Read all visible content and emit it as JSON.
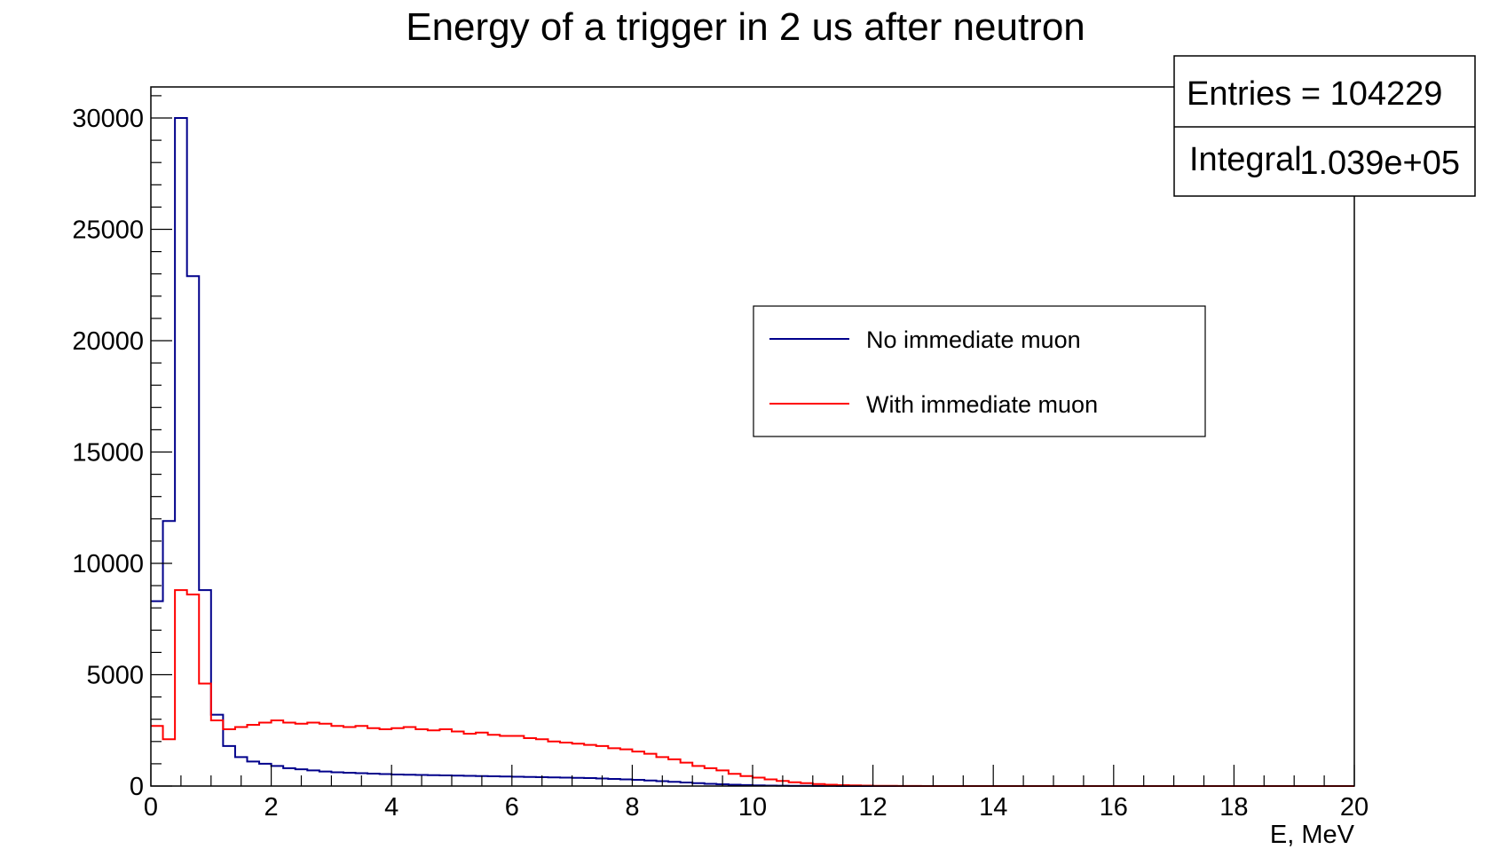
{
  "chart_data": {
    "type": "histogram",
    "title": "Energy of a trigger in 2 us after neutron",
    "xlabel": "E, MeV",
    "ylabel": "",
    "xlim": [
      0,
      20
    ],
    "ylim": [
      0,
      30000
    ],
    "x_ticks": [
      "0",
      "2",
      "4",
      "6",
      "8",
      "10",
      "12",
      "14",
      "16",
      "18",
      "20"
    ],
    "y_ticks": [
      "0",
      "5000",
      "10000",
      "15000",
      "20000",
      "25000",
      "30000"
    ],
    "grid": false,
    "bin_width": 0.2,
    "stats": {
      "entries_label": "Entries = 104229",
      "integral_label": "Integral",
      "integral_value": "1.039e+05"
    },
    "legend": {
      "placement": "center-right",
      "entries": [
        {
          "label": "No immediate muon",
          "color": "#00008b"
        },
        {
          "label": "With immediate muon",
          "color": "#ff0000"
        }
      ]
    },
    "series": [
      {
        "name": "No immediate muon",
        "color": "#00008b",
        "values": [
          8300,
          11900,
          30000,
          22900,
          8800,
          3200,
          1800,
          1300,
          1100,
          1000,
          900,
          800,
          750,
          700,
          650,
          620,
          600,
          580,
          560,
          540,
          520,
          510,
          500,
          490,
          480,
          470,
          460,
          450,
          440,
          430,
          420,
          410,
          400,
          390,
          380,
          370,
          360,
          340,
          320,
          300,
          280,
          250,
          220,
          190,
          160,
          130,
          100,
          80,
          60,
          45,
          30,
          20,
          15,
          10,
          8,
          5,
          3,
          2,
          1,
          1,
          0,
          0,
          0,
          0,
          0,
          0,
          0,
          0,
          0,
          0,
          0,
          0,
          0,
          0,
          0,
          0,
          0,
          0,
          0,
          0,
          0,
          0,
          0,
          0,
          0,
          0,
          0,
          0,
          0,
          0,
          0,
          0,
          0,
          0,
          0,
          0,
          0,
          0,
          0,
          0
        ]
      },
      {
        "name": "With immediate muon",
        "color": "#ff0000",
        "values": [
          2700,
          2100,
          8800,
          8600,
          4600,
          2950,
          2550,
          2650,
          2750,
          2850,
          2950,
          2850,
          2800,
          2850,
          2800,
          2700,
          2650,
          2700,
          2600,
          2550,
          2600,
          2650,
          2550,
          2500,
          2550,
          2450,
          2350,
          2400,
          2300,
          2250,
          2250,
          2150,
          2100,
          2000,
          1950,
          1900,
          1850,
          1800,
          1700,
          1650,
          1550,
          1450,
          1300,
          1200,
          1050,
          900,
          800,
          700,
          550,
          450,
          380,
          300,
          230,
          170,
          130,
          90,
          60,
          40,
          30,
          20,
          12,
          8,
          5,
          3,
          2,
          1,
          0,
          0,
          0,
          0,
          0,
          0,
          0,
          0,
          0,
          0,
          0,
          0,
          0,
          0,
          0,
          0,
          0,
          0,
          0,
          0,
          0,
          0,
          0,
          0,
          0,
          0,
          0,
          0,
          0,
          0,
          0,
          0,
          0,
          0
        ]
      }
    ]
  }
}
